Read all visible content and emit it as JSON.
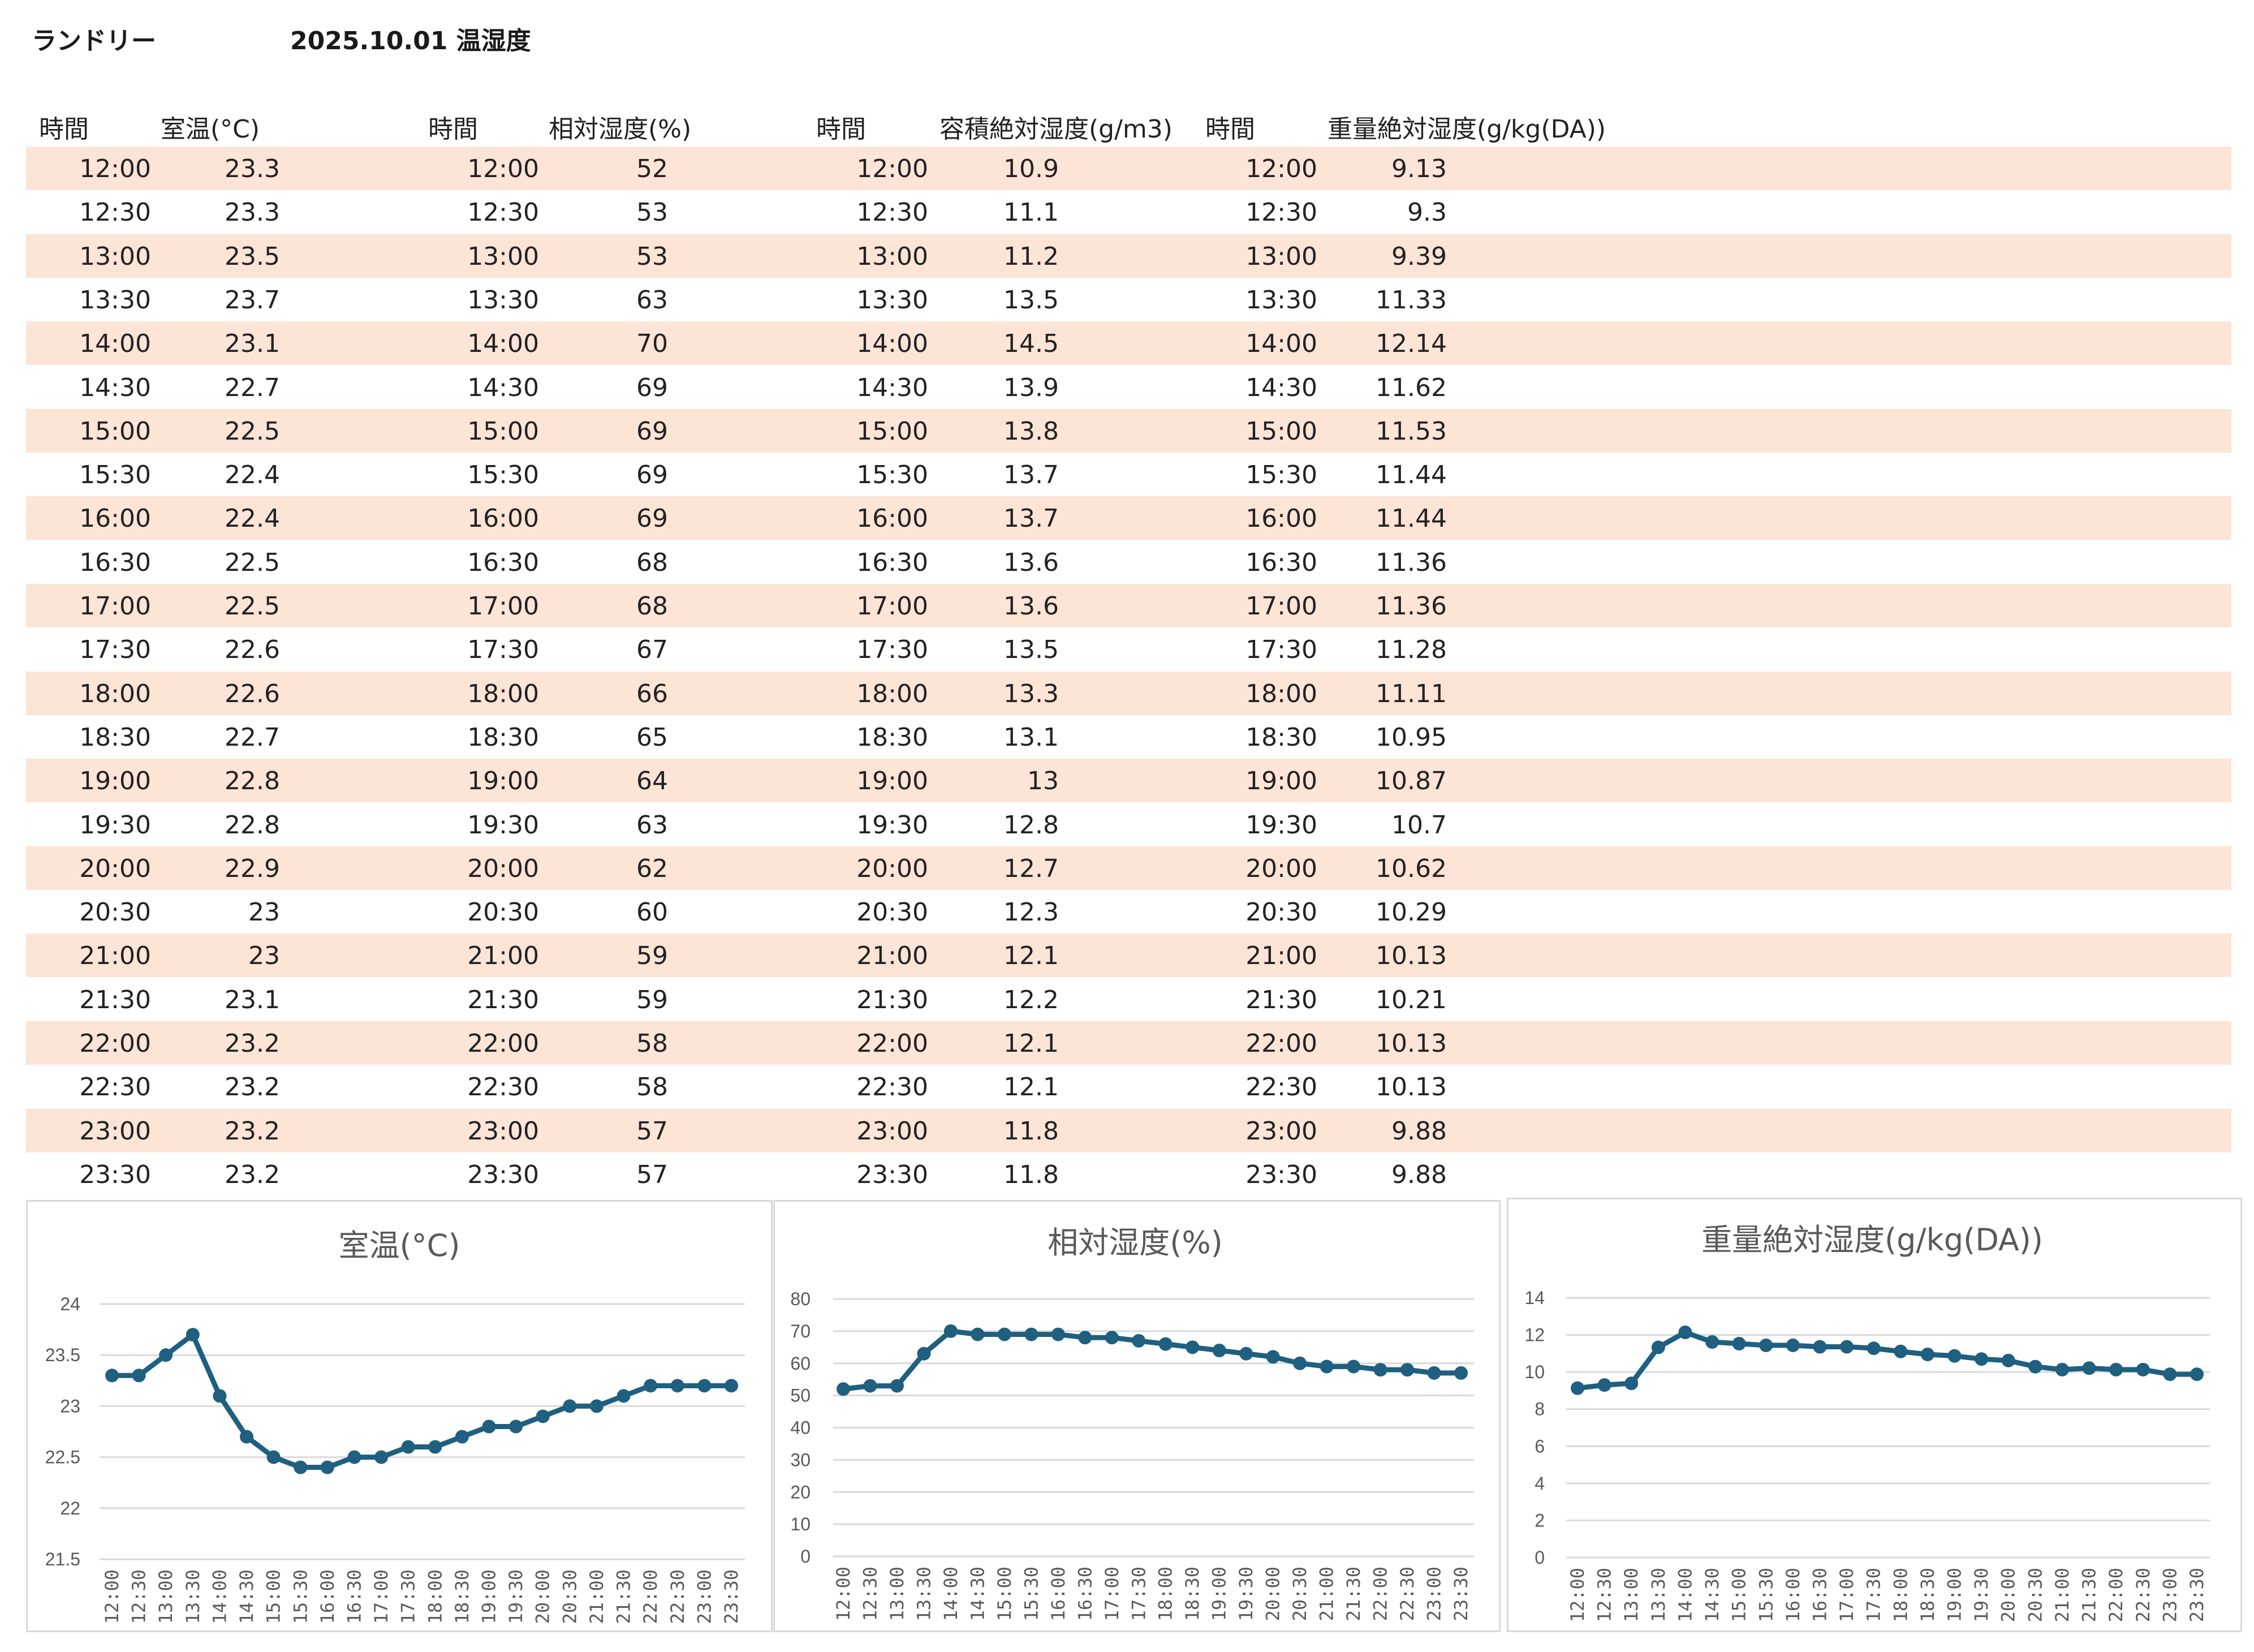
{
  "header": {
    "location": "ランドリー",
    "date_title": "2025.10.01 温湿度"
  },
  "table": {
    "columns": [
      "時間",
      "室温(°C)",
      "時間",
      "相対湿度(%)",
      "時間",
      "容積絶対湿度(g/m3)",
      "時間",
      "重量絶対湿度(g/kg(DA))"
    ],
    "times": [
      "12:00",
      "12:30",
      "13:00",
      "13:30",
      "14:00",
      "14:30",
      "15:00",
      "15:30",
      "16:00",
      "16:30",
      "17:00",
      "17:30",
      "18:00",
      "18:30",
      "19:00",
      "19:30",
      "20:00",
      "20:30",
      "21:00",
      "21:30",
      "22:00",
      "22:30",
      "23:00",
      "23:30"
    ],
    "temperature": [
      "23.3",
      "23.3",
      "23.5",
      "23.7",
      "23.1",
      "22.7",
      "22.5",
      "22.4",
      "22.4",
      "22.5",
      "22.5",
      "22.6",
      "22.6",
      "22.7",
      "22.8",
      "22.8",
      "22.9",
      "23",
      "23",
      "23.1",
      "23.2",
      "23.2",
      "23.2",
      "23.2"
    ],
    "relative_humidity": [
      "52",
      "53",
      "53",
      "63",
      "70",
      "69",
      "69",
      "69",
      "69",
      "68",
      "68",
      "67",
      "66",
      "65",
      "64",
      "63",
      "62",
      "60",
      "59",
      "59",
      "58",
      "58",
      "57",
      "57"
    ],
    "volumetric_humidity": [
      "10.9",
      "11.1",
      "11.2",
      "13.5",
      "14.5",
      "13.9",
      "13.8",
      "13.7",
      "13.7",
      "13.6",
      "13.6",
      "13.5",
      "13.3",
      "13.1",
      "13",
      "12.8",
      "12.7",
      "12.3",
      "12.1",
      "12.2",
      "12.1",
      "12.1",
      "11.8",
      "11.8"
    ],
    "mass_humidity": [
      "9.13",
      "9.3",
      "9.39",
      "11.33",
      "12.14",
      "11.62",
      "11.53",
      "11.44",
      "11.44",
      "11.36",
      "11.36",
      "11.28",
      "11.11",
      "10.95",
      "10.87",
      "10.7",
      "10.62",
      "10.29",
      "10.13",
      "10.21",
      "10.13",
      "10.13",
      "9.88",
      "9.88"
    ]
  },
  "colors": {
    "stripe": "#fce4d6",
    "series": "#1f5f80",
    "grid": "#d9d9d9",
    "axis_text": "#595959"
  },
  "chart_data": [
    {
      "type": "line",
      "title": "室温(°C)",
      "categories": [
        "12:00",
        "12:30",
        "13:00",
        "13:30",
        "14:00",
        "14:30",
        "15:00",
        "15:30",
        "16:00",
        "16:30",
        "17:00",
        "17:30",
        "18:00",
        "18:30",
        "19:00",
        "19:30",
        "20:00",
        "20:30",
        "21:00",
        "21:30",
        "22:00",
        "22:30",
        "23:00",
        "23:30"
      ],
      "series": [
        {
          "name": "室温(°C)",
          "values": [
            23.3,
            23.3,
            23.5,
            23.7,
            23.1,
            22.7,
            22.5,
            22.4,
            22.4,
            22.5,
            22.5,
            22.6,
            22.6,
            22.7,
            22.8,
            22.8,
            22.9,
            23,
            23,
            23.1,
            23.2,
            23.2,
            23.2,
            23.2
          ]
        }
      ],
      "ylim": [
        21.5,
        24
      ],
      "yticks": [
        "21.5",
        "22",
        "22.5",
        "23",
        "23.5",
        "24"
      ],
      "grid": true,
      "legend": "none"
    },
    {
      "type": "line",
      "title": "相対湿度(%)",
      "categories": [
        "12:00",
        "12:30",
        "13:00",
        "13:30",
        "14:00",
        "14:30",
        "15:00",
        "15:30",
        "16:00",
        "16:30",
        "17:00",
        "17:30",
        "18:00",
        "18:30",
        "19:00",
        "19:30",
        "20:00",
        "20:30",
        "21:00",
        "21:30",
        "22:00",
        "22:30",
        "23:00",
        "23:30"
      ],
      "series": [
        {
          "name": "相対湿度(%)",
          "values": [
            52,
            53,
            53,
            63,
            70,
            69,
            69,
            69,
            69,
            68,
            68,
            67,
            66,
            65,
            64,
            63,
            62,
            60,
            59,
            59,
            58,
            58,
            57,
            57
          ]
        }
      ],
      "ylim": [
        0,
        80
      ],
      "yticks": [
        "0",
        "10",
        "20",
        "30",
        "40",
        "50",
        "60",
        "70",
        "80"
      ],
      "grid": true,
      "legend": "none"
    },
    {
      "type": "line",
      "title": "重量絶対湿度(g/kg(DA))",
      "categories": [
        "12:00",
        "12:30",
        "13:00",
        "13:30",
        "14:00",
        "14:30",
        "15:00",
        "15:30",
        "16:00",
        "16:30",
        "17:00",
        "17:30",
        "18:00",
        "18:30",
        "19:00",
        "19:30",
        "20:00",
        "20:30",
        "21:00",
        "21:30",
        "22:00",
        "22:30",
        "23:00",
        "23:30"
      ],
      "series": [
        {
          "name": "重量絶対湿度(g/kg(DA))",
          "values": [
            9.13,
            9.3,
            9.39,
            11.33,
            12.14,
            11.62,
            11.53,
            11.44,
            11.44,
            11.36,
            11.36,
            11.28,
            11.11,
            10.95,
            10.87,
            10.7,
            10.62,
            10.29,
            10.13,
            10.21,
            10.13,
            10.13,
            9.88,
            9.88
          ]
        }
      ],
      "ylim": [
        0,
        14
      ],
      "yticks": [
        "0",
        "2",
        "4",
        "6",
        "8",
        "10",
        "12",
        "14"
      ],
      "grid": true,
      "legend": "none"
    }
  ]
}
